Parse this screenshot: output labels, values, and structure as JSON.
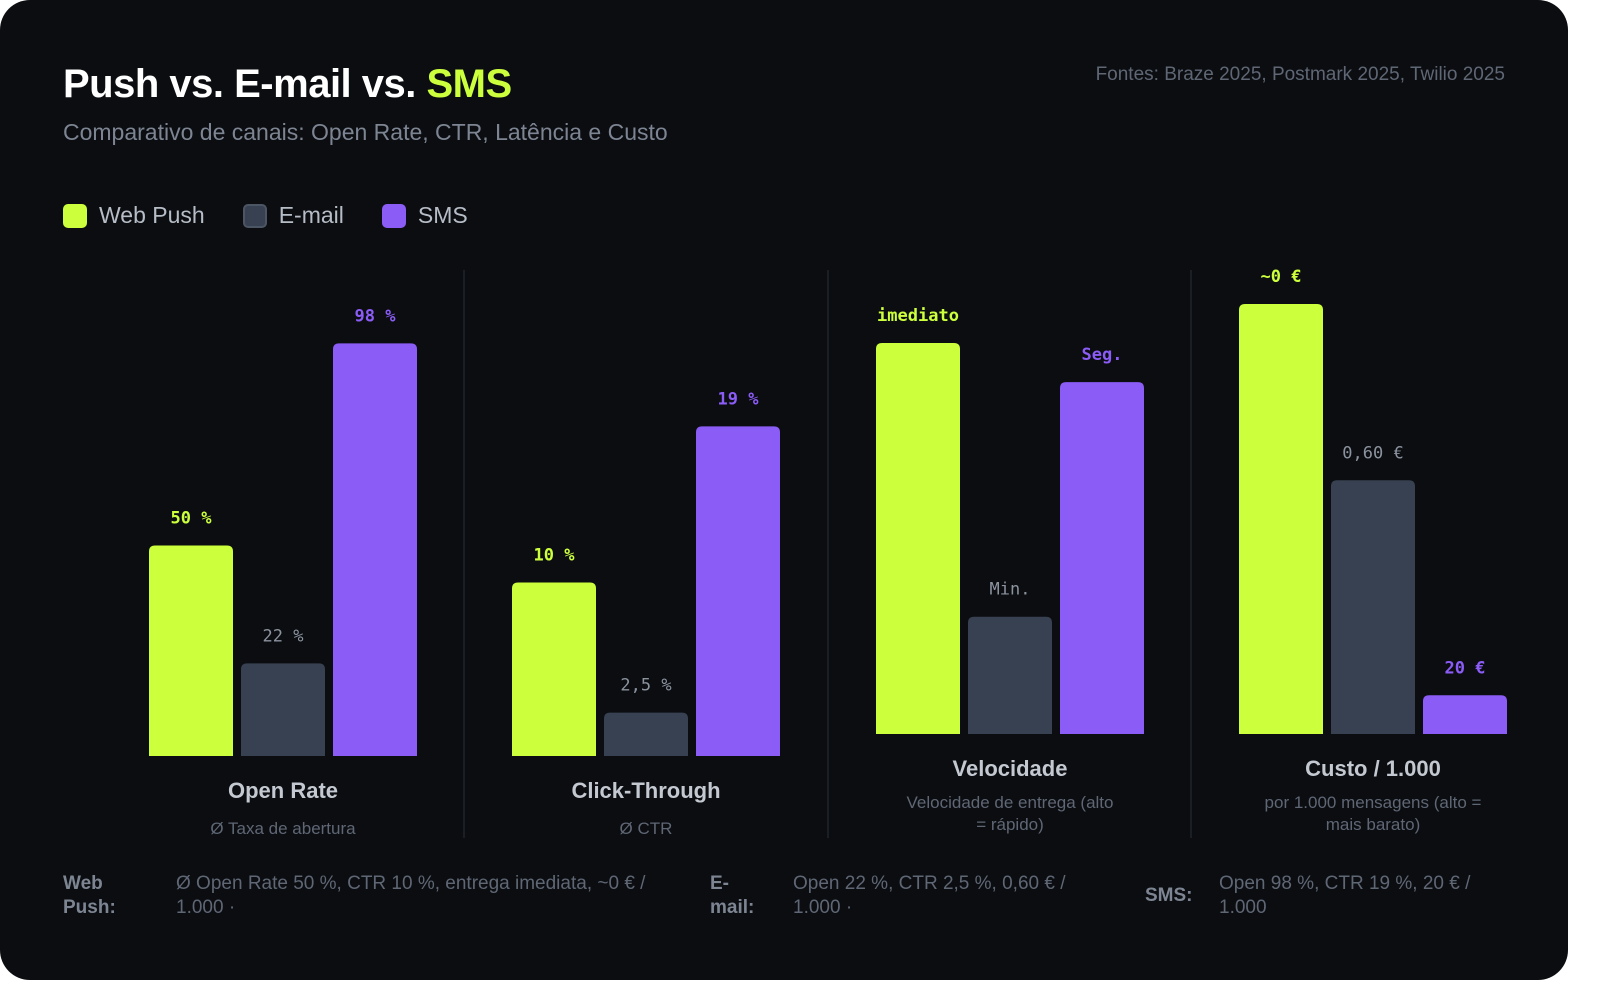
{
  "header": {
    "title_prefix": "Push vs. E-mail vs. ",
    "title_accent": "SMS",
    "subtitle": "Comparativo de canais: Open Rate, CTR, Latência e Custo",
    "sources": "Fontes: Braze 2025, Postmark 2025, Twilio 2025"
  },
  "colors": {
    "web_push": "#ccff3c",
    "email": "#374151",
    "sms": "#8b5cf6",
    "email_label": "#8b939f"
  },
  "legend": [
    {
      "name": "Web Push",
      "color": "#ccff3c"
    },
    {
      "name": "E-mail",
      "color": "#374151"
    },
    {
      "name": "SMS",
      "color": "#8b5cf6"
    }
  ],
  "chart_data": {
    "type": "bar",
    "series_names": [
      "Web Push",
      "E-mail",
      "SMS"
    ],
    "panels": [
      {
        "title": "Open Rate",
        "subtitle": "Ø Taxa de abertura",
        "ylim": [
          0,
          100
        ],
        "values": [
          50,
          22,
          98
        ],
        "labels": [
          "50 %",
          "22 %",
          "98 %"
        ]
      },
      {
        "title": "Click-Through",
        "subtitle": "Ø CTR",
        "ylim": [
          0,
          20
        ],
        "values": [
          10,
          2.5,
          19
        ],
        "labels": [
          "10 %",
          "2,5 %",
          "19 %"
        ]
      },
      {
        "title": "Velocidade",
        "subtitle": "Velocidade de entrega (alto = rápido)",
        "ylim": [
          0,
          100
        ],
        "values": [
          100,
          30,
          90
        ],
        "labels": [
          "imediato",
          "Min.",
          "Seg."
        ]
      },
      {
        "title": "Custo / 1.000",
        "subtitle": "por 1.000 mensagens (alto = mais barato)",
        "ylim": [
          0,
          100
        ],
        "values": [
          100,
          59,
          9
        ],
        "labels": [
          "~0 €",
          "0,60 €",
          "20 €"
        ]
      }
    ]
  },
  "footer": [
    {
      "label": "Web Push:",
      "text": "Ø Open Rate 50 %, CTR 10 %, entrega imediata, ~0 € / 1.000 ·"
    },
    {
      "label": "E-mail:",
      "text": "Open 22 %, CTR 2,5 %, 0,60 € / 1.000 ·"
    },
    {
      "label": "SMS:",
      "text": "Open 98 %, CTR 19 %, 20 € / 1.000"
    }
  ]
}
